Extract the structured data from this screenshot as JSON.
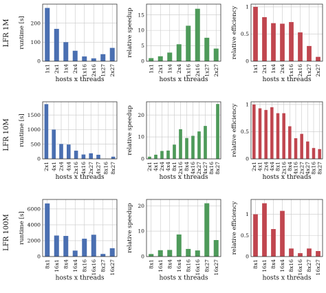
{
  "colors": {
    "runtime": "#4a6fb1",
    "speedup": "#4e9a5a",
    "efficiency": "#c0464f"
  },
  "column_titles": {
    "runtime_ylabel": "runtime [s]",
    "speedup_ylabel": "relative speedup",
    "efficiency_ylabel": "relative efficiency",
    "xlabel": "hosts x threads"
  },
  "rows": [
    {
      "label": "LFR 1M"
    },
    {
      "label": "LFR 10M"
    },
    {
      "label": "LFR 100M"
    }
  ],
  "chart_data": [
    {
      "type": "bar",
      "row": 0,
      "metric": "runtime",
      "categories": [
        "1x1",
        "2x1",
        "1x4",
        "2x4",
        "1x16",
        "2x16",
        "1x27",
        "2x27"
      ],
      "values": [
        280,
        170,
        100,
        55,
        25,
        15,
        37,
        70
      ],
      "ylim": [
        0,
        300
      ],
      "yticks": [
        0,
        100,
        200
      ],
      "ylabel": "runtime [s]",
      "xlabel": "hosts x threads",
      "grid": true
    },
    {
      "type": "bar",
      "row": 0,
      "metric": "speedup",
      "categories": [
        "1x1",
        "2x1",
        "1x4",
        "2x4",
        "1x16",
        "2x16",
        "1x27",
        "2x27"
      ],
      "values": [
        1,
        1.6,
        2.8,
        5.5,
        11.5,
        17,
        7.6,
        4.1
      ],
      "ylim": [
        0,
        18.5
      ],
      "yticks": [
        0,
        5,
        10,
        15
      ],
      "ylabel": "relative speedup",
      "xlabel": "hosts x threads",
      "grid": true
    },
    {
      "type": "bar",
      "row": 0,
      "metric": "efficiency",
      "categories": [
        "1x1",
        "2x1",
        "1x4",
        "2x4",
        "1x16",
        "2x16",
        "1x27",
        "2x27"
      ],
      "values": [
        1,
        0.81,
        0.7,
        0.69,
        0.72,
        0.53,
        0.28,
        0.08
      ],
      "ylim": [
        0,
        1.05
      ],
      "yticks": [
        0,
        0.5,
        1.0
      ],
      "ylabel": "relative efficiency",
      "xlabel": "hosts x threads",
      "grid": true
    },
    {
      "type": "bar",
      "row": 1,
      "metric": "runtime",
      "categories": [
        "2x1",
        "4x1",
        "2x4",
        "4x4",
        "2x16",
        "4x16",
        "2x27",
        "4x27",
        "8x16",
        "8x27"
      ],
      "values": [
        1870,
        1000,
        510,
        490,
        280,
        150,
        190,
        140,
        0,
        75
      ],
      "ylim": [
        0,
        1950
      ],
      "yticks": [
        0,
        500,
        1000,
        1500
      ],
      "ylabel": "runtime [s]",
      "xlabel": "hosts x threads",
      "grid": true
    },
    {
      "type": "bar",
      "row": 1,
      "metric": "speedup",
      "categories": [
        "2x1",
        "4x1",
        "2x4",
        "4x4",
        "8x1",
        "2x16",
        "8x4",
        "4x16",
        "2x27",
        "4x27",
        "8x16",
        "8x27"
      ],
      "values": [
        1,
        1.9,
        3.6,
        3.8,
        6.5,
        13.5,
        9.5,
        10.5,
        12.5,
        15,
        0,
        25
      ],
      "ylim": [
        0,
        26
      ],
      "yticks": [
        0,
        10,
        20
      ],
      "ylabel": "relative speedup",
      "xlabel": "hosts x threads",
      "grid": true
    },
    {
      "type": "bar",
      "row": 1,
      "metric": "efficiency",
      "categories": [
        "2x1",
        "4x1",
        "2x4",
        "4x4",
        "8x1",
        "2x16",
        "8x4",
        "4x16",
        "2x27",
        "4x27",
        "8x16",
        "8x27"
      ],
      "values": [
        1,
        0.93,
        0.9,
        0.95,
        0.84,
        0.84,
        0.6,
        0.38,
        0.46,
        0.32,
        0.2,
        0.18
      ],
      "ylim": [
        0,
        1.05
      ],
      "yticks": [
        0,
        0.5,
        1.0
      ],
      "ylabel": "relative efficiency",
      "xlabel": "hosts x threads",
      "grid": true
    },
    {
      "type": "bar",
      "row": 2,
      "metric": "runtime",
      "categories": [
        "8x1",
        "16x1",
        "8x4",
        "16x4",
        "8x16",
        "16x16",
        "8x27",
        "16x27"
      ],
      "values": [
        6700,
        2650,
        2600,
        750,
        2250,
        2750,
        330,
        1050
      ],
      "ylim": [
        0,
        7200
      ],
      "yticks": [
        0,
        2000,
        4000,
        6000
      ],
      "ylabel": "runtime [s]",
      "xlabel": "hosts x threads",
      "grid": true
    },
    {
      "type": "bar",
      "row": 2,
      "metric": "speedup",
      "categories": [
        "8x1",
        "16x1",
        "8x4",
        "16x4",
        "8x16",
        "16x16",
        "8x27",
        "16x27"
      ],
      "values": [
        1,
        2.5,
        2.6,
        8.7,
        3,
        2.4,
        21,
        6.5
      ],
      "ylim": [
        0,
        22.5
      ],
      "yticks": [
        0,
        10,
        20
      ],
      "ylabel": "relative speedup",
      "xlabel": "hosts x threads",
      "grid": true
    },
    {
      "type": "bar",
      "row": 2,
      "metric": "efficiency",
      "categories": [
        "8x1",
        "16x1",
        "8x4",
        "16x4",
        "8x16",
        "16x16",
        "8x27",
        "16x27"
      ],
      "values": [
        1,
        1.26,
        0.65,
        1.08,
        0.19,
        0.08,
        0.19,
        0.13
      ],
      "ylim": [
        0,
        1.35
      ],
      "yticks": [
        0,
        0.5,
        1.0
      ],
      "ylabel": "relative efficiency",
      "xlabel": "hosts x threads",
      "grid": true
    }
  ]
}
